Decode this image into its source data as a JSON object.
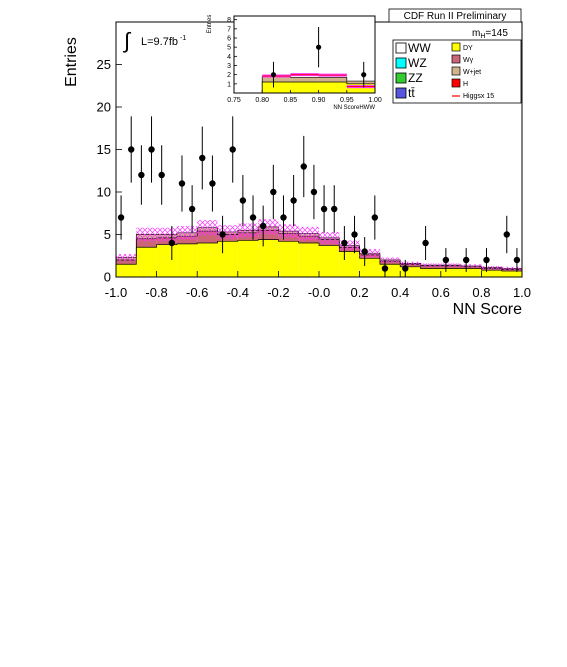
{
  "header": {
    "experiment": "CDF Run II Preliminary",
    "mass_label": "m",
    "mass_sub": "H",
    "mass_value": "=145"
  },
  "luminosity": {
    "symbol": "∫",
    "text": "L=9.7fb",
    "exponent": "-1"
  },
  "colors": {
    "WW": "#ffffff",
    "WZ": "#00ffff",
    "ZZ": "#33cc33",
    "tt": "#5555dd",
    "DY": "#ffff00",
    "Wgamma": "#cc6677",
    "Wjet": "#d2b48c",
    "H": "#ff0000",
    "signal_line": "#ff0000",
    "hatch": "#ff33ff"
  },
  "legend": {
    "left": [
      {
        "key": "WW",
        "label": "WW"
      },
      {
        "key": "WZ",
        "label": "WZ"
      },
      {
        "key": "ZZ",
        "label": "ZZ"
      },
      {
        "key": "tt",
        "label": "tt̄"
      }
    ],
    "right": [
      {
        "key": "DY",
        "label": "DY"
      },
      {
        "key": "Wgamma",
        "label": "Wγ"
      },
      {
        "key": "Wjet",
        "label": "W+jet"
      },
      {
        "key": "H",
        "label": "H"
      },
      {
        "key": "signal_line",
        "label": "Higgsx 15"
      }
    ]
  },
  "chart_data": [
    {
      "type": "bar",
      "role": "main",
      "xlabel": "NN Score",
      "ylabel": "Entries",
      "xlim": [
        -1.0,
        1.0
      ],
      "ylim": [
        0,
        30
      ],
      "x_ticks": [
        -1.0,
        -0.8,
        -0.6,
        -0.4,
        -0.2,
        0.0,
        0.2,
        0.4,
        0.6,
        0.8,
        1.0
      ],
      "x_tick_labels": [
        "-1.0",
        "-0.8",
        "-0.6",
        "-0.4",
        "-0.2",
        "-0.0",
        "0.2",
        "0.4",
        "0.6",
        "0.8",
        "1.0"
      ],
      "y_ticks": [
        0,
        5,
        10,
        15,
        20,
        25
      ],
      "y_tick_labels": [
        "0",
        "5",
        "10",
        "15",
        "20",
        "25"
      ],
      "bin_edges": [
        -1.0,
        -0.9,
        -0.8,
        -0.7,
        -0.6,
        -0.5,
        -0.4,
        -0.3,
        -0.2,
        -0.1,
        0.0,
        0.1,
        0.2,
        0.3,
        0.4,
        0.5,
        0.6,
        0.7,
        0.8,
        0.9,
        1.0
      ],
      "series": [
        {
          "name": "DY",
          "color_key": "DY",
          "values": [
            1.5,
            3.5,
            3.8,
            3.9,
            4.0,
            4.2,
            4.3,
            4.4,
            4.2,
            4.0,
            3.7,
            3.0,
            2.2,
            1.5,
            1.2,
            1.0,
            1.0,
            1.0,
            0.8,
            0.7
          ]
        },
        {
          "name": "Wγ",
          "color_key": "Wgamma",
          "values": [
            0.5,
            1.0,
            0.8,
            0.9,
            1.4,
            0.8,
            0.9,
            1.1,
            0.9,
            0.8,
            0.7,
            0.5,
            0.4,
            0.3,
            0.3,
            0.3,
            0.3,
            0.2,
            0.2,
            0.2
          ]
        },
        {
          "name": "W+jet",
          "color_key": "Wjet",
          "values": [
            0.3,
            0.5,
            0.4,
            0.4,
            0.4,
            0.3,
            0.3,
            0.4,
            0.3,
            0.3,
            0.2,
            0.2,
            0.2,
            0.2,
            0.1,
            0.1,
            0.1,
            0.1,
            0.1,
            0.1
          ]
        }
      ],
      "total": [
        2.3,
        5.0,
        5.0,
        5.2,
        5.8,
        5.3,
        5.5,
        5.9,
        5.4,
        5.1,
        4.6,
        3.7,
        2.8,
        2.0,
        1.6,
        1.4,
        1.4,
        1.3,
        1.1,
        1.0
      ],
      "uncertainty": [
        0.4,
        0.8,
        0.8,
        0.8,
        0.9,
        0.8,
        0.8,
        0.9,
        0.8,
        0.8,
        0.7,
        0.6,
        0.5,
        0.3,
        0.2,
        0.2,
        0.2,
        0.2,
        0.2,
        0.2
      ],
      "data_points": [
        {
          "x": -0.975,
          "y": 7,
          "err": 2.6
        },
        {
          "x": -0.925,
          "y": 15,
          "err": 3.9
        },
        {
          "x": -0.875,
          "y": 12,
          "err": 3.5
        },
        {
          "x": -0.825,
          "y": 15,
          "err": 3.9
        },
        {
          "x": -0.775,
          "y": 12,
          "err": 3.5
        },
        {
          "x": -0.725,
          "y": 4,
          "err": 2.0
        },
        {
          "x": -0.675,
          "y": 11,
          "err": 3.3
        },
        {
          "x": -0.625,
          "y": 8,
          "err": 2.8
        },
        {
          "x": -0.575,
          "y": 14,
          "err": 3.7
        },
        {
          "x": -0.525,
          "y": 11,
          "err": 3.3
        },
        {
          "x": -0.475,
          "y": 5,
          "err": 2.2
        },
        {
          "x": -0.425,
          "y": 15,
          "err": 3.9
        },
        {
          "x": -0.375,
          "y": 9,
          "err": 3.0
        },
        {
          "x": -0.325,
          "y": 7,
          "err": 2.6
        },
        {
          "x": -0.275,
          "y": 6,
          "err": 2.4
        },
        {
          "x": -0.225,
          "y": 10,
          "err": 3.2
        },
        {
          "x": -0.175,
          "y": 7,
          "err": 2.6
        },
        {
          "x": -0.125,
          "y": 9,
          "err": 3.0
        },
        {
          "x": -0.075,
          "y": 13,
          "err": 3.6
        },
        {
          "x": -0.025,
          "y": 10,
          "err": 3.2
        },
        {
          "x": 0.025,
          "y": 8,
          "err": 2.8
        },
        {
          "x": 0.075,
          "y": 8,
          "err": 2.8
        },
        {
          "x": 0.125,
          "y": 4,
          "err": 2.0
        },
        {
          "x": 0.175,
          "y": 5,
          "err": 2.2
        },
        {
          "x": 0.225,
          "y": 3,
          "err": 1.7
        },
        {
          "x": 0.275,
          "y": 7,
          "err": 2.6
        },
        {
          "x": 0.325,
          "y": 1,
          "err": 1.0
        },
        {
          "x": 0.425,
          "y": 1,
          "err": 1.0
        },
        {
          "x": 0.525,
          "y": 4,
          "err": 2.0
        },
        {
          "x": 0.625,
          "y": 2,
          "err": 1.4
        },
        {
          "x": 0.725,
          "y": 2,
          "err": 1.4
        },
        {
          "x": 0.825,
          "y": 2,
          "err": 1.4
        },
        {
          "x": 0.925,
          "y": 5,
          "err": 2.2
        },
        {
          "x": 0.975,
          "y": 2,
          "err": 1.4
        }
      ]
    },
    {
      "type": "bar",
      "role": "inset",
      "xlabel": "NN ScoreHWW",
      "ylabel": "Entries",
      "xlim": [
        0.75,
        1.0
      ],
      "ylim": [
        0,
        8.4
      ],
      "x_ticks": [
        0.75,
        0.8,
        0.85,
        0.9,
        0.95,
        1.0
      ],
      "x_tick_labels": [
        "0.75",
        "0.80",
        "0.85",
        "0.90",
        "0.95",
        "1.00"
      ],
      "y_ticks": [
        1,
        2,
        3,
        4,
        5,
        6,
        7,
        8
      ],
      "y_tick_labels": [
        "1",
        "2",
        "3",
        "4",
        "5",
        "6",
        "7",
        "8"
      ],
      "bin_edges": [
        0.75,
        0.8,
        0.85,
        0.9,
        0.95,
        1.0
      ],
      "series": [
        {
          "name": "DY",
          "color_key": "DY",
          "values": [
            0,
            1.2,
            1.2,
            1.2,
            1.0
          ]
        },
        {
          "name": "W+jet",
          "color_key": "Wjet",
          "values": [
            0,
            0.6,
            0.5,
            0.5,
            0.3
          ]
        }
      ],
      "total": [
        0,
        1.8,
        1.7,
        1.7,
        1.3
      ],
      "signal": [
        0,
        1.85,
        2.0,
        1.95,
        0.7
      ],
      "data_points": [
        {
          "x": 0.82,
          "y": 2,
          "err": 1.4
        },
        {
          "x": 0.9,
          "y": 5,
          "err": 2.2
        },
        {
          "x": 0.98,
          "y": 2,
          "err": 1.4
        }
      ]
    }
  ]
}
